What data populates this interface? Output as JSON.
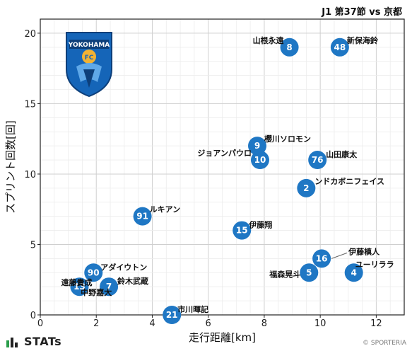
{
  "header": {
    "title": "J1 第37節 vs 京都"
  },
  "footer": {
    "brand": "STATs",
    "copyright": "© SPORTERIA"
  },
  "logo": {
    "text": "YOKOHAMA",
    "emblem": "FC"
  },
  "colors": {
    "point": "#1f77c4",
    "grid": "#cfcfcf"
  },
  "chart_data": {
    "type": "scatter",
    "xlabel": "走行距離[km]",
    "ylabel": "スプリント回数[回]",
    "xlim": [
      0,
      13
    ],
    "ylim": [
      0,
      21
    ],
    "xticks": [
      "0",
      "2",
      "4",
      "6",
      "8",
      "10",
      "12"
    ],
    "yticks": [
      "0",
      "5",
      "10",
      "15",
      "20"
    ],
    "grid": true,
    "points": [
      {
        "num": "8",
        "name": "山根永遠",
        "x": 8.9,
        "y": 19
      },
      {
        "num": "48",
        "name": "新保海鈴",
        "x": 10.7,
        "y": 19
      },
      {
        "num": "9",
        "name": "櫻川ソロモン",
        "x": 7.75,
        "y": 12
      },
      {
        "num": "10",
        "name": "ジョアンパウロ",
        "x": 7.85,
        "y": 11
      },
      {
        "num": "76",
        "name": "山田康太",
        "x": 9.9,
        "y": 11
      },
      {
        "num": "2",
        "name": "ンドカボニフェイス",
        "x": 9.5,
        "y": 9
      },
      {
        "num": "91",
        "name": "ルキアン",
        "x": 3.65,
        "y": 7
      },
      {
        "num": "15",
        "name": "伊藤翔",
        "x": 7.2,
        "y": 6
      },
      {
        "num": "16",
        "name": "伊藤槙人",
        "x": 10.05,
        "y": 4
      },
      {
        "num": "5",
        "name": "福森晃斗",
        "x": 9.6,
        "y": 3
      },
      {
        "num": "4",
        "name": "ユーリララ",
        "x": 11.2,
        "y": 3
      },
      {
        "num": "90",
        "name": "アダイウトン",
        "x": 1.9,
        "y": 3
      },
      {
        "num": "13",
        "name": "遠藤貴成",
        "x": 1.4,
        "y": 2
      },
      {
        "num": "7",
        "name": "鈴木武蔵",
        "x": 2.45,
        "y": 2
      },
      {
        "num": "",
        "name": "中野嘉大",
        "x": 2.0,
        "y": 1.6
      },
      {
        "num": "21",
        "name": "市川暉記",
        "x": 4.7,
        "y": 0
      }
    ]
  }
}
